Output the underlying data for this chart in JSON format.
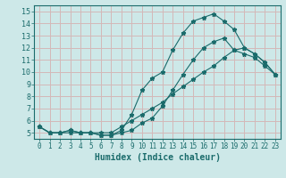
{
  "xlabel": "Humidex (Indice chaleur)",
  "ylabel": "",
  "background_color": "#cde8e8",
  "grid_color": "#b8d8d8",
  "line_color": "#1a6b6b",
  "xlim": [
    -0.5,
    23.5
  ],
  "ylim": [
    4.5,
    15.5
  ],
  "xticks": [
    0,
    1,
    2,
    3,
    4,
    5,
    6,
    7,
    8,
    9,
    10,
    11,
    12,
    13,
    14,
    15,
    16,
    17,
    18,
    19,
    20,
    21,
    22,
    23
  ],
  "yticks": [
    5,
    6,
    7,
    8,
    9,
    10,
    11,
    12,
    13,
    14,
    15
  ],
  "line1_x": [
    0,
    1,
    2,
    3,
    4,
    5,
    6,
    7,
    8,
    9,
    10,
    11,
    12,
    13,
    14,
    15,
    16,
    17,
    18,
    19,
    20,
    21,
    22,
    23
  ],
  "line1_y": [
    5.5,
    5.0,
    5.0,
    5.2,
    5.0,
    5.0,
    4.8,
    4.8,
    5.2,
    6.5,
    8.5,
    9.5,
    10.0,
    11.8,
    13.2,
    14.2,
    14.5,
    14.8,
    14.2,
    13.5,
    12.0,
    11.5,
    10.8,
    9.8
  ],
  "line2_x": [
    0,
    1,
    2,
    3,
    4,
    5,
    6,
    7,
    8,
    9,
    10,
    11,
    12,
    13,
    14,
    15,
    16,
    17,
    18,
    19,
    20,
    21,
    22,
    23
  ],
  "line2_y": [
    5.5,
    5.0,
    5.0,
    5.2,
    5.0,
    5.0,
    4.8,
    4.8,
    5.0,
    5.2,
    5.8,
    6.2,
    7.2,
    8.5,
    9.8,
    11.0,
    12.0,
    12.5,
    12.8,
    11.8,
    11.5,
    11.2,
    10.5,
    9.8
  ],
  "line3_x": [
    0,
    1,
    2,
    3,
    4,
    5,
    6,
    7,
    8,
    9,
    10,
    11,
    12,
    13,
    14,
    15,
    16,
    17,
    18,
    19,
    20,
    21,
    22,
    23
  ],
  "line3_y": [
    5.5,
    5.0,
    5.0,
    5.0,
    5.0,
    5.0,
    5.0,
    5.0,
    5.5,
    6.0,
    6.5,
    7.0,
    7.5,
    8.2,
    8.8,
    9.4,
    10.0,
    10.5,
    11.2,
    11.8,
    12.0,
    11.5,
    10.8,
    9.8
  ]
}
